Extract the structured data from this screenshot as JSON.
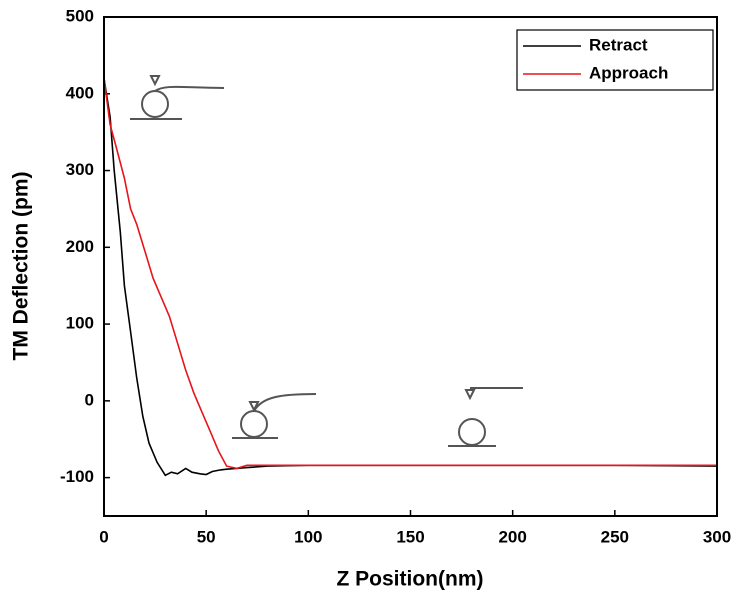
{
  "chart_data": {
    "type": "line",
    "x_label": "Z Position(nm)",
    "y_label": "TM Deflection (pm)",
    "xlim": [
      0,
      300
    ],
    "ylim": [
      -150,
      500
    ],
    "xticks": [
      0,
      50,
      100,
      150,
      200,
      250,
      300
    ],
    "yticks": [
      -100,
      0,
      100,
      200,
      300,
      400,
      500
    ],
    "legend": "upper right",
    "series": [
      {
        "name": "Retract",
        "color": "#000000",
        "x": [
          0,
          3,
          5,
          8,
          10,
          13,
          16,
          19,
          22,
          26,
          30,
          33,
          36,
          40,
          43,
          47,
          50,
          53,
          57,
          60,
          70,
          80,
          100,
          150,
          200,
          250,
          300
        ],
        "values": [
          420,
          370,
          300,
          220,
          150,
          90,
          30,
          -20,
          -55,
          -80,
          -97,
          -93,
          -95,
          -88,
          -93,
          -95,
          -96,
          -92,
          -90,
          -89,
          -87,
          -85,
          -84,
          -84,
          -84,
          -84,
          -85
        ]
      },
      {
        "name": "Approach",
        "color": "#e8141b",
        "x": [
          0,
          3,
          6,
          10,
          13,
          16,
          20,
          24,
          28,
          32,
          36,
          40,
          44,
          48,
          52,
          56,
          60,
          65,
          70,
          100,
          150,
          200,
          300
        ],
        "values": [
          420,
          360,
          330,
          290,
          250,
          230,
          195,
          160,
          135,
          110,
          75,
          40,
          10,
          -15,
          -40,
          -65,
          -85,
          -88,
          -84,
          -84,
          -84,
          -84,
          -84
        ]
      }
    ]
  }
}
